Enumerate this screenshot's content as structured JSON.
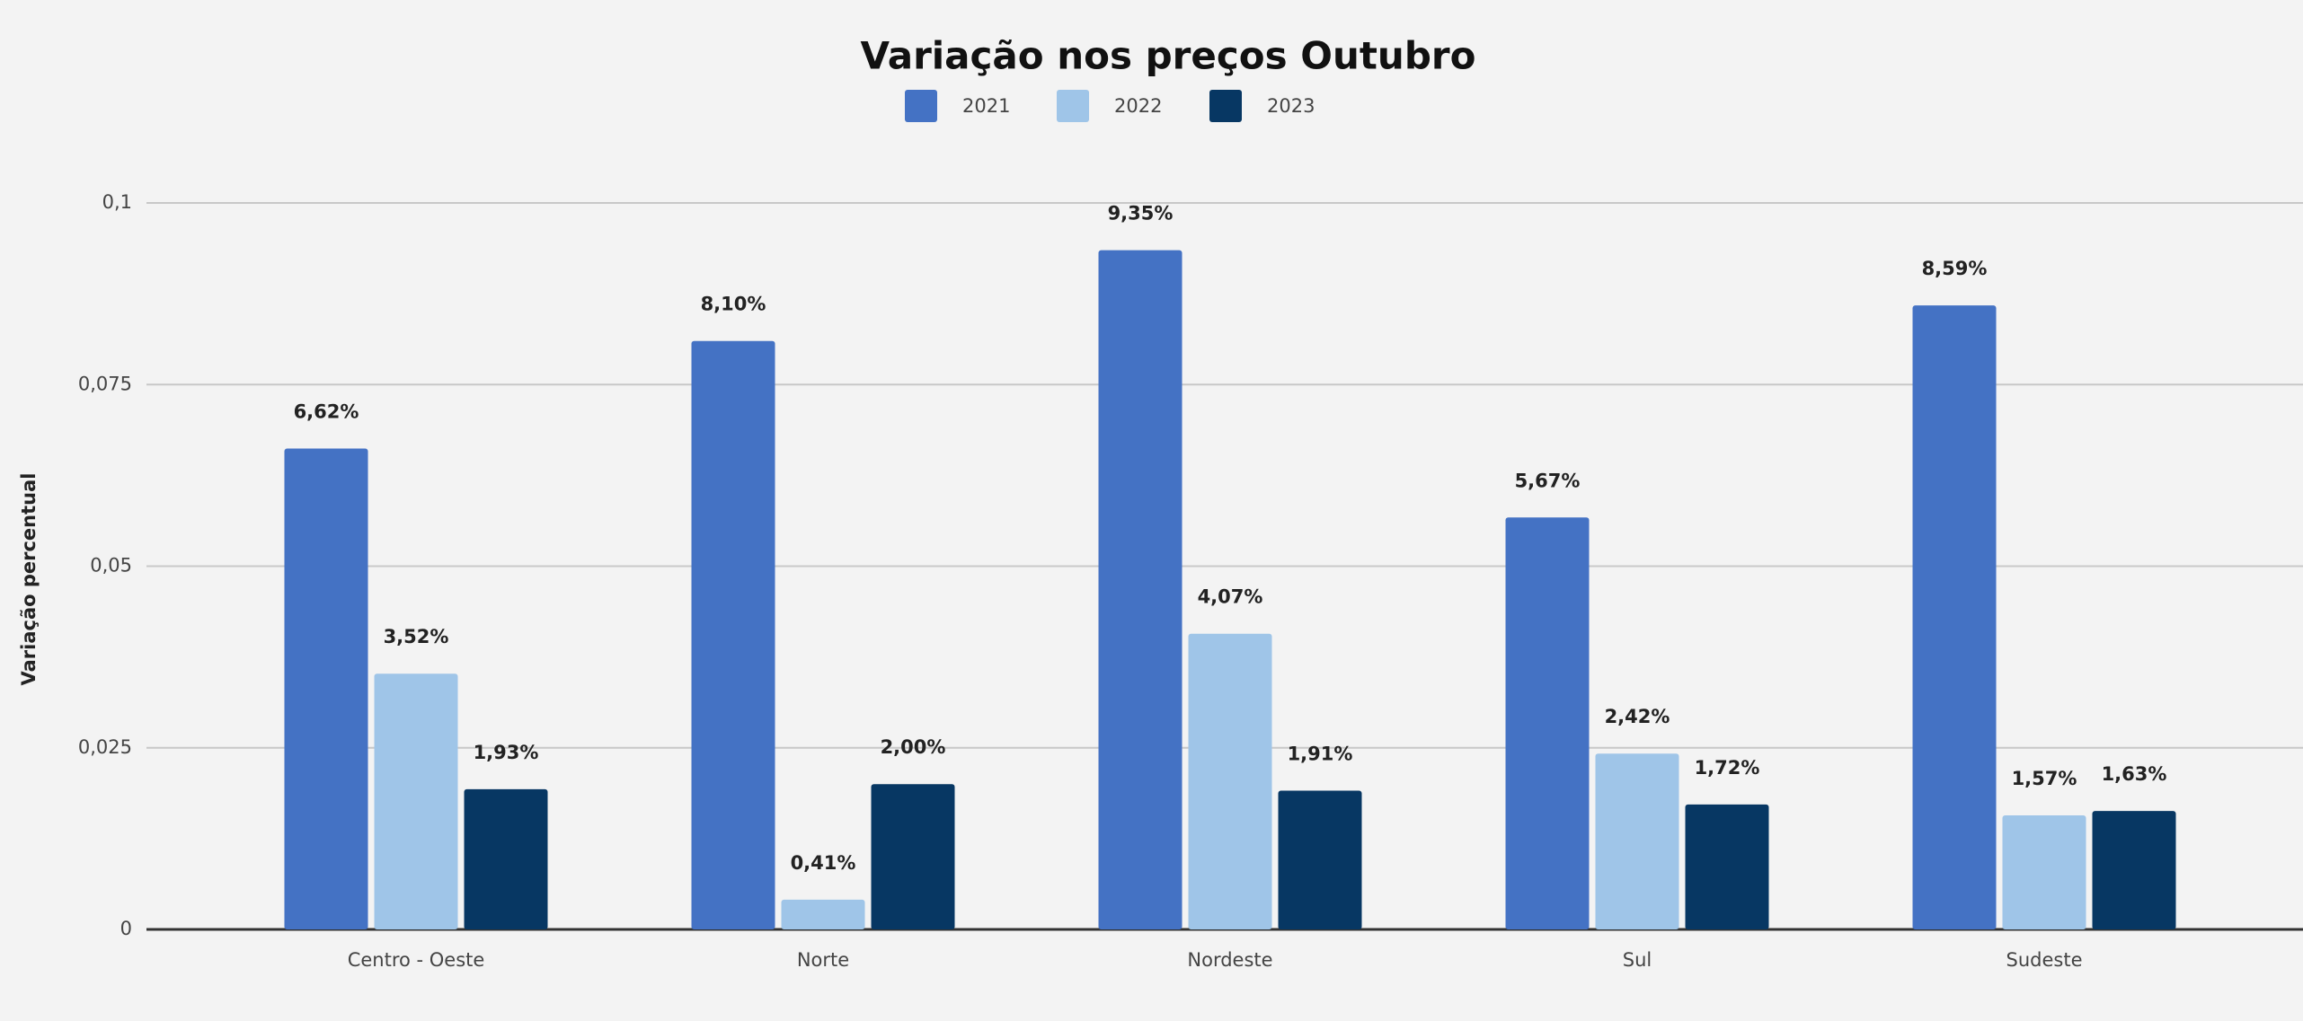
{
  "chart_data": {
    "type": "bar",
    "title": "Variação nos preços Outubro",
    "y_label": "Variação percentual",
    "categories": [
      "Centro - Oeste",
      "Norte",
      "Nordeste",
      "Sul",
      "Sudeste"
    ],
    "series": [
      {
        "name": "2021",
        "color": "#4472c4",
        "values": [
          0.0662,
          0.081,
          0.0935,
          0.0567,
          0.0859
        ],
        "value_labels": [
          "6,62%",
          "8,10%",
          "9,35%",
          "5,67%",
          "8,59%"
        ]
      },
      {
        "name": "2022",
        "color": "#9fc5e8",
        "values": [
          0.0352,
          0.0041,
          0.0407,
          0.0242,
          0.0157
        ],
        "value_labels": [
          "3,52%",
          "0,41%",
          "4,07%",
          "2,42%",
          "1,57%"
        ]
      },
      {
        "name": "2023",
        "color": "#073763",
        "values": [
          0.0193,
          0.02,
          0.0191,
          0.0172,
          0.0163
        ],
        "value_labels": [
          "1,93%",
          "2,00%",
          "1,91%",
          "1,72%",
          "1,63%"
        ]
      }
    ],
    "ylim": [
      0,
      0.1
    ],
    "yticks": [
      0,
      {
        "value": 0.025,
        "label": "0,025"
      },
      {
        "value": 0.05,
        "label": "0,05"
      },
      {
        "value": 0.075,
        "label": "0,075"
      },
      {
        "value": 0.1,
        "label": "0,1"
      }
    ],
    "grid": true,
    "legend": "top"
  }
}
